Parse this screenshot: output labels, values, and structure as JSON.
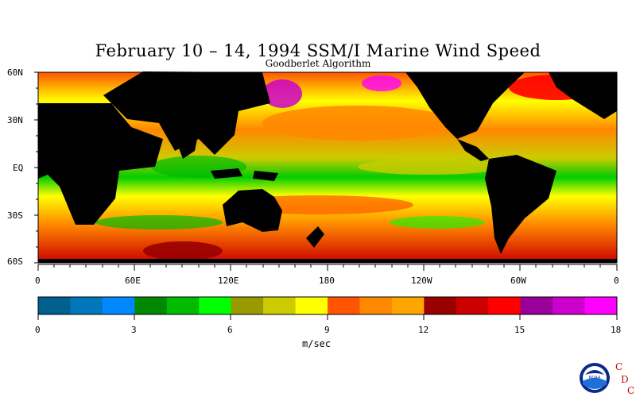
{
  "title": "February 10 – 14, 1994 SSM/I Marine Wind Speed",
  "subtitle": "Goodberlet Algorithm",
  "map": {
    "lat_labels": [
      "60N",
      "30N",
      "EQ",
      "30S",
      "60S"
    ],
    "lon_labels": [
      "0",
      "60E",
      "120E",
      "180",
      "120W",
      "60W",
      "0"
    ]
  },
  "colorbar": {
    "unit": "m/sec",
    "tick_labels": [
      "0",
      "3",
      "6",
      "9",
      "12",
      "15",
      "18"
    ],
    "min": 0,
    "max": 18,
    "colors": [
      "#005f8c",
      "#0077bb",
      "#0088ff",
      "#008800",
      "#00bb00",
      "#00ff00",
      "#999900",
      "#cccc00",
      "#ffff00",
      "#ff5500",
      "#ff8800",
      "#ffa500",
      "#990000",
      "#cc0000",
      "#ff0000",
      "#990099",
      "#cc00cc",
      "#ff00ff"
    ]
  },
  "logo": {
    "text": "NOAA",
    "letters": [
      "C",
      "D",
      "C"
    ]
  },
  "colors": {
    "land": "#000000",
    "background": "#ffffff"
  }
}
